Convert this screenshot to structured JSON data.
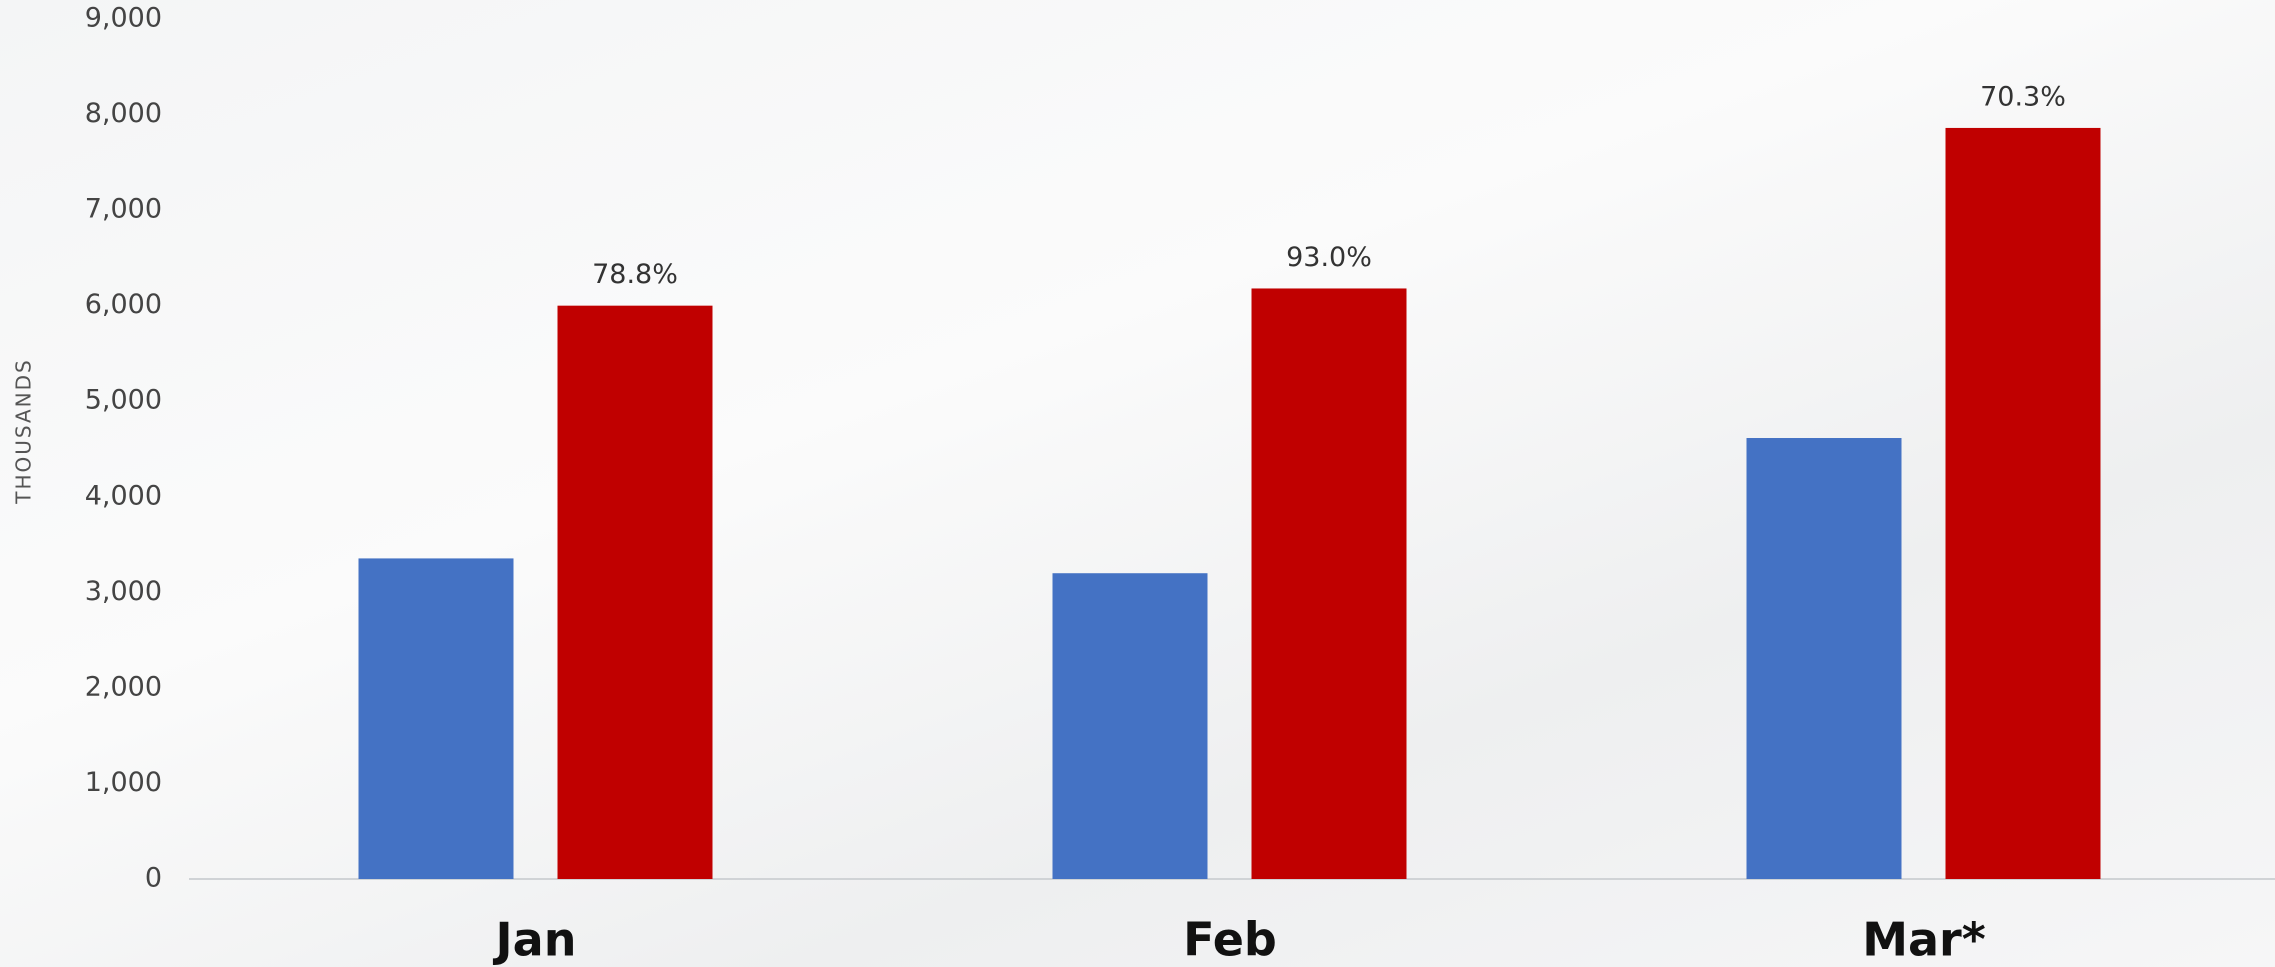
{
  "chart_data": {
    "type": "bar",
    "categories": [
      "Jan",
      "Feb",
      "Mar*"
    ],
    "y_label": "THOUSANDS",
    "series": [
      {
        "color": "#4472c4",
        "values": [
          3355,
          3200,
          4615
        ]
      },
      {
        "color": "#c00000",
        "values": [
          6000,
          6180,
          7860
        ]
      }
    ],
    "annotations": [
      "78.8%",
      "93.0%",
      "70.3%"
    ],
    "ylim": [
      0,
      9000
    ],
    "yticks": [
      {
        "value": 0,
        "label": "0"
      },
      {
        "value": 1000,
        "label": "1,000"
      },
      {
        "value": 2000,
        "label": "2,000"
      },
      {
        "value": 3000,
        "label": "3,000"
      },
      {
        "value": 4000,
        "label": "4,000"
      },
      {
        "value": 5000,
        "label": "5,000"
      },
      {
        "value": 6000,
        "label": "6,000"
      },
      {
        "value": 7000,
        "label": "7,000"
      },
      {
        "value": 8000,
        "label": "8,000"
      },
      {
        "value": 9000,
        "label": "9,000"
      }
    ],
    "grid": false
  }
}
